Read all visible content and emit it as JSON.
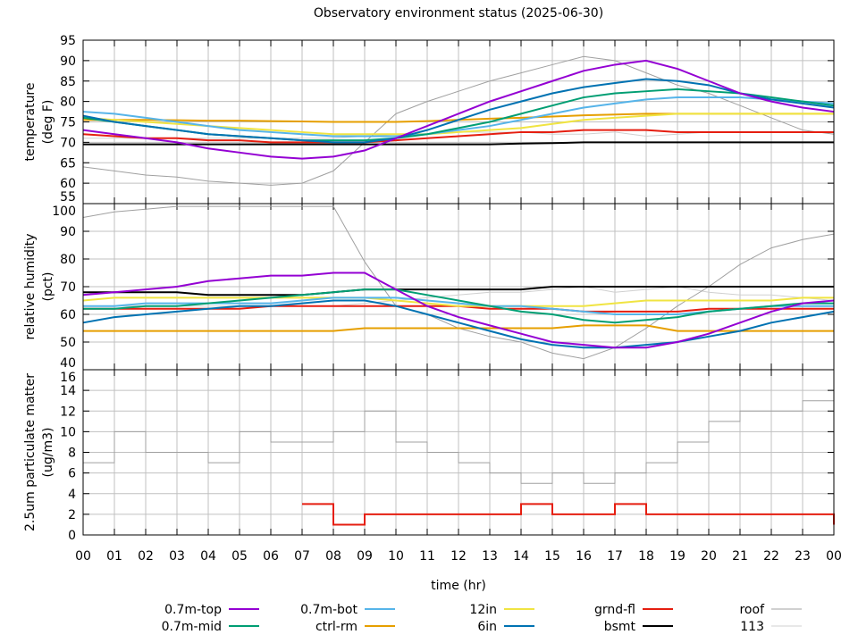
{
  "chart_data": {
    "type": "line",
    "title": "Observatory environment status (2025-06-30)",
    "xlabel": "time (hr)",
    "x_ticks": [
      "00",
      "01",
      "02",
      "03",
      "04",
      "05",
      "06",
      "07",
      "08",
      "09",
      "10",
      "11",
      "12",
      "13",
      "14",
      "15",
      "16",
      "17",
      "18",
      "19",
      "20",
      "21",
      "22",
      "23",
      "00"
    ],
    "xlim": [
      0,
      24
    ],
    "grid": true,
    "legend_placement": "bottom",
    "legend": [
      {
        "key": "top",
        "label": "0.7m-top",
        "color": "#9400d3"
      },
      {
        "key": "mid",
        "label": "0.7m-mid",
        "color": "#009e73"
      },
      {
        "key": "bot",
        "label": "0.7m-bot",
        "color": "#56b4e9"
      },
      {
        "key": "ctrl",
        "label": "ctrl-rm",
        "color": "#e69f00"
      },
      {
        "key": "in12",
        "label": "12in",
        "color": "#f0e442"
      },
      {
        "key": "in6",
        "label": "6in",
        "color": "#0072b2"
      },
      {
        "key": "grnd",
        "label": "grnd-fl",
        "color": "#e51e10"
      },
      {
        "key": "bsmt",
        "label": "bsmt",
        "color": "#000000"
      },
      {
        "key": "roof",
        "label": "roof",
        "color": "#a0a0a0"
      },
      {
        "key": "s113",
        "label": "113",
        "color": "#d0d0d0"
      }
    ],
    "panels": [
      {
        "ylabel": "temperature",
        "yunit": "(deg F)",
        "ylim": [
          55,
          95
        ],
        "yticks": [
          55,
          60,
          65,
          70,
          75,
          80,
          85,
          90,
          95
        ],
        "series": {
          "s113": [
            71,
            71,
            71,
            71,
            71,
            71,
            71,
            71,
            71,
            71.5,
            72,
            72,
            72.5,
            72.5,
            72.5,
            72,
            72,
            72.5,
            71.5,
            72,
            72.5,
            72.5,
            72.5,
            72.5,
            72.5
          ],
          "roof": [
            64,
            63,
            62,
            61.5,
            60.5,
            60,
            59.5,
            60,
            63,
            70,
            77,
            80,
            82.5,
            85,
            87,
            89,
            91,
            90,
            87,
            84,
            82,
            79,
            76,
            73,
            72
          ],
          "bsmt": [
            69.5,
            69.5,
            69.5,
            69.5,
            69.5,
            69.5,
            69.5,
            69.5,
            69.5,
            69.5,
            69.5,
            69.5,
            69.5,
            69.5,
            69.7,
            69.8,
            70,
            70,
            70,
            70,
            70,
            70,
            70,
            70,
            70
          ],
          "grnd": [
            72,
            71.5,
            71,
            71,
            70.5,
            70.5,
            70,
            70,
            70,
            70,
            70.5,
            71,
            71.5,
            72,
            72.5,
            72.5,
            73,
            73,
            73,
            72.5,
            72.5,
            72.5,
            72.5,
            72.5,
            72.5
          ],
          "ctrl": [
            75.5,
            75.5,
            75.5,
            75.4,
            75.3,
            75.3,
            75.2,
            75.1,
            75,
            75,
            75,
            75.2,
            75.5,
            75.8,
            76,
            76.3,
            76.6,
            76.8,
            77,
            77,
            77,
            77,
            77,
            77,
            77
          ],
          "in12": [
            76,
            75.5,
            75,
            74.5,
            74,
            73.5,
            73,
            72.5,
            72,
            72,
            72,
            72,
            72.5,
            73,
            73.5,
            74.5,
            75.5,
            76,
            76.5,
            77,
            77,
            77,
            77,
            77,
            77
          ],
          "bot": [
            77.5,
            77,
            76,
            75,
            74,
            73,
            72.5,
            72,
            71.5,
            71.5,
            71.5,
            72,
            73,
            74,
            75.5,
            77,
            78.5,
            79.5,
            80.5,
            81,
            81,
            81,
            80.5,
            80,
            79.5
          ],
          "mid": [
            76,
            75,
            74,
            73,
            72,
            71.5,
            71,
            70.5,
            70.5,
            70.5,
            71,
            72,
            73.5,
            75,
            77,
            79,
            81,
            82,
            82.5,
            83,
            82.5,
            82,
            81,
            80,
            79
          ],
          "in6": [
            76.5,
            75,
            74,
            73,
            72,
            71.5,
            71,
            70.5,
            70,
            70,
            71,
            73,
            75.5,
            78,
            80,
            82,
            83.5,
            84.5,
            85.5,
            85,
            84,
            82,
            80.5,
            79.5,
            78.5
          ],
          "top": [
            73,
            72,
            71,
            70,
            68.5,
            67.5,
            66.5,
            66,
            66.5,
            68,
            71,
            74,
            77,
            80,
            82.5,
            85,
            87.5,
            89,
            90,
            88,
            85,
            82,
            80,
            78.5,
            77.5
          ]
        }
      },
      {
        "ylabel": "relative humidity",
        "yunit": "(pct)",
        "ylim": [
          40,
          100
        ],
        "yticks": [
          40,
          50,
          60,
          70,
          80,
          90,
          100
        ],
        "series": {
          "s113": [
            63,
            63,
            63,
            63,
            63,
            63,
            63,
            63,
            63,
            64,
            65,
            66,
            67,
            68,
            68,
            69,
            70,
            68,
            69,
            70,
            68,
            67,
            67,
            66,
            65
          ],
          "roof": [
            95,
            97,
            98,
            99,
            99,
            99,
            99,
            99,
            99,
            79,
            63,
            60,
            55,
            52,
            50,
            46,
            44,
            48,
            55,
            63,
            70,
            78,
            84,
            87,
            89
          ],
          "bsmt": [
            68,
            68,
            68,
            68,
            67,
            67,
            67,
            67,
            68,
            69,
            69,
            69,
            69,
            69,
            69,
            70,
            70,
            70,
            70,
            70,
            70,
            70,
            70,
            70,
            70
          ],
          "grnd": [
            62,
            62,
            62,
            62,
            62,
            62,
            63,
            63,
            63,
            63,
            63,
            63,
            63,
            62,
            62,
            62,
            61,
            61,
            61,
            61,
            62,
            62,
            62,
            62,
            62
          ],
          "ctrl": [
            54,
            54,
            54,
            54,
            54,
            54,
            54,
            54,
            54,
            55,
            55,
            55,
            55,
            55,
            55,
            55,
            56,
            56,
            56,
            54,
            54,
            54,
            54,
            54,
            54
          ],
          "in12": [
            65,
            66,
            66,
            66,
            66,
            66,
            66,
            66,
            66,
            66,
            65,
            64,
            63,
            63,
            63,
            63,
            63,
            64,
            65,
            65,
            65,
            65,
            65,
            66,
            66
          ],
          "bot": [
            63,
            63,
            64,
            64,
            64,
            64,
            64,
            65,
            66,
            66,
            66,
            65,
            64,
            63,
            63,
            62,
            61,
            60,
            60,
            60,
            61,
            62,
            63,
            63,
            63
          ],
          "mid": [
            62,
            62,
            63,
            63,
            64,
            65,
            66,
            67,
            68,
            69,
            69,
            67,
            65,
            63,
            61,
            60,
            58,
            57,
            58,
            59,
            61,
            62,
            63,
            64,
            64
          ],
          "in6": [
            57,
            59,
            60,
            61,
            62,
            63,
            63,
            64,
            65,
            65,
            63,
            60,
            57,
            54,
            51,
            49,
            48,
            48,
            49,
            50,
            52,
            54,
            57,
            59,
            61
          ],
          "top": [
            67,
            68,
            69,
            70,
            72,
            73,
            74,
            74,
            75,
            75,
            69,
            63,
            59,
            56,
            53,
            50,
            49,
            48,
            48,
            50,
            53,
            57,
            61,
            64,
            65
          ]
        }
      },
      {
        "ylabel": "2.5um particulate matter",
        "yunit": "(ug/m3)",
        "ylim": [
          0,
          16
        ],
        "yticks": [
          0,
          2,
          4,
          6,
          8,
          10,
          12,
          14,
          16
        ],
        "series": {
          "roof": [
            7,
            10,
            8,
            8,
            7,
            10,
            9,
            9,
            10,
            12,
            9,
            8,
            7,
            6,
            5,
            6,
            5,
            6,
            7,
            9,
            11,
            12,
            12,
            13,
            13
          ],
          "grnd": [
            null,
            null,
            null,
            null,
            null,
            null,
            null,
            3,
            1,
            2,
            2,
            2,
            2,
            2,
            3,
            2,
            2,
            3,
            2,
            2,
            2,
            2,
            2,
            2,
            1
          ]
        }
      }
    ]
  }
}
